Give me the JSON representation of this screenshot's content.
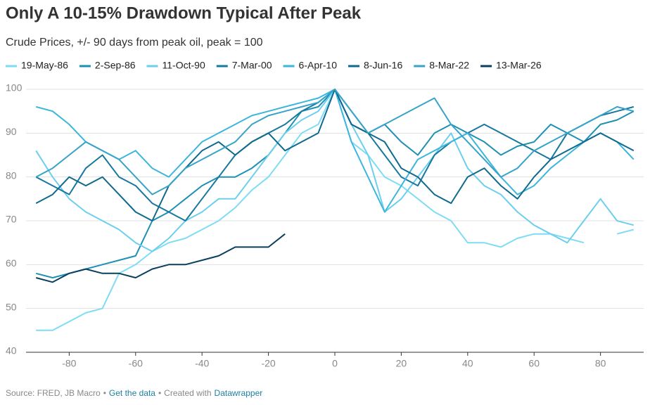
{
  "chart_data": {
    "type": "line",
    "title": "Only A 10-15% Drawdown Typical After Peak",
    "subtitle": "Crude Prices, +/- 90 days from peak oil, peak = 100",
    "x": [
      -90,
      -85,
      -80,
      -75,
      -70,
      -65,
      -60,
      -55,
      -50,
      -45,
      -40,
      -35,
      -30,
      -25,
      -20,
      -15,
      -10,
      -5,
      0,
      5,
      10,
      15,
      20,
      25,
      30,
      35,
      40,
      45,
      50,
      55,
      60,
      65,
      70,
      75,
      80,
      85,
      90
    ],
    "xlim": [
      -93,
      93
    ],
    "xticks": [
      -80,
      -60,
      -40,
      -20,
      0,
      20,
      40,
      60,
      80
    ],
    "ylim": [
      40,
      100
    ],
    "yticks": [
      40,
      50,
      60,
      70,
      80,
      90,
      100
    ],
    "grid": true,
    "series": [
      {
        "name": "19-May-86",
        "color": "#7fdcf5",
        "values": [
          45,
          45,
          47,
          49,
          50,
          58,
          60,
          63,
          65,
          66,
          68,
          70,
          73,
          77,
          80,
          85,
          90,
          92,
          100,
          88,
          85,
          80,
          78,
          75,
          72,
          70,
          65,
          65,
          64,
          66,
          67,
          67,
          66,
          65,
          null,
          67,
          68
        ]
      },
      {
        "name": "2-Sep-86",
        "color": "#1e90b4",
        "values": [
          58,
          57,
          58,
          59,
          60,
          61,
          62,
          70,
          72,
          75,
          78,
          80,
          80,
          82,
          85,
          90,
          95,
          96,
          100,
          95,
          90,
          92,
          88,
          85,
          90,
          92,
          90,
          88,
          85,
          87,
          88,
          92,
          90,
          88,
          92,
          93,
          95
        ]
      },
      {
        "name": "11-Oct-90",
        "color": "#6ccfee",
        "values": [
          86,
          80,
          75,
          72,
          70,
          68,
          65,
          63,
          66,
          70,
          72,
          75,
          75,
          80,
          85,
          90,
          93,
          95,
          100,
          92,
          85,
          72,
          75,
          80,
          85,
          90,
          82,
          78,
          76,
          72,
          69,
          67,
          65,
          70,
          75,
          70,
          69
        ]
      },
      {
        "name": "7-Mar-00",
        "color": "#17789f",
        "values": [
          80,
          78,
          76,
          82,
          85,
          80,
          78,
          74,
          72,
          70,
          75,
          80,
          85,
          88,
          90,
          92,
          95,
          97,
          100,
          92,
          90,
          85,
          80,
          78,
          85,
          88,
          90,
          92,
          90,
          88,
          86,
          84,
          90,
          92,
          94,
          95,
          96
        ]
      },
      {
        "name": "6-Apr-10",
        "color": "#3db6db",
        "values": [
          96,
          95,
          92,
          88,
          86,
          84,
          86,
          82,
          80,
          84,
          88,
          90,
          92,
          94,
          95,
          96,
          97,
          98,
          100,
          88,
          80,
          72,
          78,
          84,
          86,
          88,
          90,
          85,
          80,
          76,
          78,
          82,
          85,
          88,
          90,
          88,
          84
        ]
      },
      {
        "name": "8-Jun-16",
        "color": "#0f6a8e",
        "values": [
          74,
          76,
          80,
          78,
          80,
          76,
          72,
          70,
          78,
          82,
          86,
          88,
          85,
          88,
          90,
          86,
          88,
          90,
          100,
          92,
          90,
          88,
          82,
          80,
          76,
          74,
          80,
          82,
          78,
          75,
          80,
          84,
          86,
          88,
          90,
          88,
          86
        ]
      },
      {
        "name": "8-Mar-22",
        "color": "#38a3c8",
        "values": [
          80,
          82,
          85,
          88,
          86,
          84,
          80,
          76,
          78,
          82,
          84,
          86,
          88,
          92,
          94,
          95,
          96,
          97,
          100,
          95,
          90,
          92,
          94,
          96,
          98,
          92,
          88,
          84,
          80,
          82,
          86,
          88,
          90,
          92,
          94,
          96,
          95
        ]
      },
      {
        "name": "13-Mar-26",
        "color": "#0b3f5e",
        "values": [
          57,
          56,
          58,
          59,
          58,
          58,
          57,
          59,
          60,
          60,
          61,
          62,
          64,
          64,
          64,
          67,
          null,
          null,
          null,
          null,
          null,
          null,
          null,
          null,
          null,
          null,
          null,
          null,
          null,
          null,
          null,
          null,
          null,
          null,
          null,
          null,
          null
        ]
      }
    ]
  },
  "footer": {
    "source": "Source: FRED, JB Macro",
    "separator": "•",
    "data_link": "Get the data",
    "created": "Created with",
    "tool": "Datawrapper"
  }
}
